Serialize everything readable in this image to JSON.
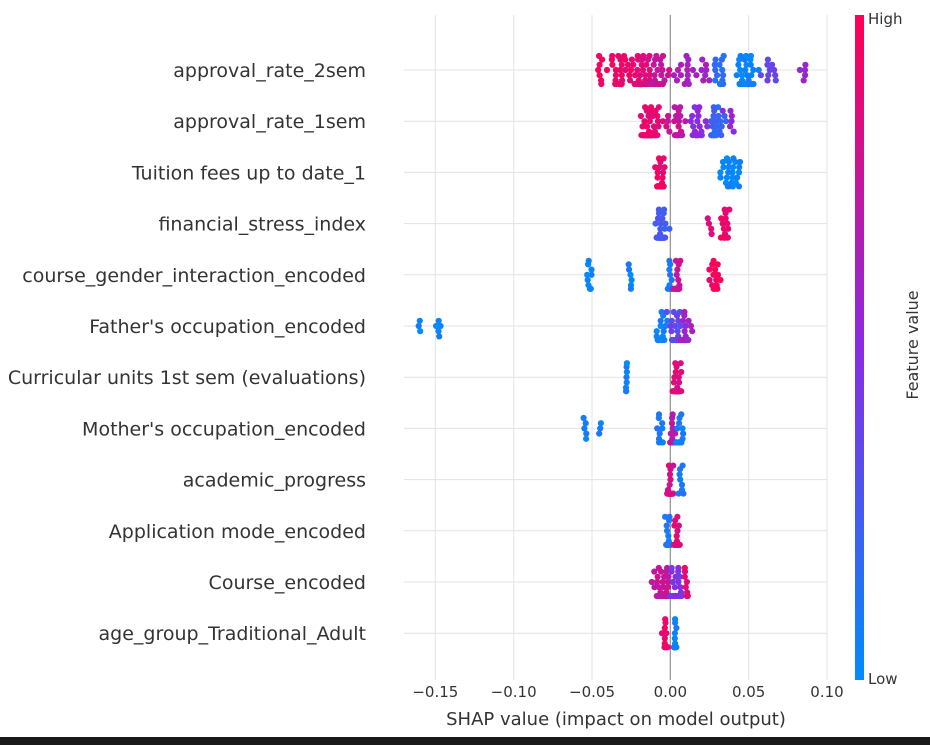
{
  "chart_data": {
    "type": "scatter",
    "xlabel": "SHAP value (impact on model output)",
    "xlim": [
      -0.17,
      0.1
    ],
    "xticks": [
      -0.15,
      -0.1,
      -0.05,
      0.0,
      0.05,
      0.1
    ],
    "xtick_labels": [
      "−0.15",
      "−0.10",
      "−0.05",
      "0.00",
      "0.05",
      "0.10"
    ],
    "grid": true,
    "colorbar": {
      "title": "Feature value",
      "high_label": "High",
      "low_label": "Low",
      "high_color": "#ff0052",
      "low_color": "#008bfb"
    },
    "features": [
      {
        "name": "approval_rate_2sem",
        "clusters": [
          {
            "x": -0.045,
            "spread": 0.006,
            "n": 8,
            "val": 0.95
          },
          {
            "x": -0.03,
            "spread": 0.008,
            "n": 30,
            "val": 0.92
          },
          {
            "x": -0.018,
            "spread": 0.006,
            "n": 50,
            "val": 0.85
          },
          {
            "x": -0.008,
            "spread": 0.005,
            "n": 30,
            "val": 0.75
          },
          {
            "x": 0.008,
            "spread": 0.006,
            "n": 14,
            "val": 0.65
          },
          {
            "x": 0.022,
            "spread": 0.004,
            "n": 8,
            "val": 0.6
          },
          {
            "x": 0.032,
            "spread": 0.004,
            "n": 18,
            "val": 0.15
          },
          {
            "x": 0.048,
            "spread": 0.006,
            "n": 45,
            "val": 0.05
          },
          {
            "x": 0.065,
            "spread": 0.006,
            "n": 10,
            "val": 0.35
          },
          {
            "x": 0.085,
            "spread": 0.005,
            "n": 5,
            "val": 0.55
          }
        ]
      },
      {
        "name": "approval_rate_1sem",
        "clusters": [
          {
            "x": -0.013,
            "spread": 0.005,
            "n": 60,
            "val": 0.9
          },
          {
            "x": 0.005,
            "spread": 0.005,
            "n": 20,
            "val": 0.75
          },
          {
            "x": 0.018,
            "spread": 0.005,
            "n": 22,
            "val": 0.5
          },
          {
            "x": 0.03,
            "spread": 0.005,
            "n": 25,
            "val": 0.2
          },
          {
            "x": 0.039,
            "spread": 0.003,
            "n": 6,
            "val": 0.55
          }
        ]
      },
      {
        "name": "Tuition fees up to date_1",
        "clusters": [
          {
            "x": -0.006,
            "spread": 0.002,
            "n": 60,
            "val": 0.93
          },
          {
            "x": 0.038,
            "spread": 0.006,
            "n": 25,
            "val": 0.03
          }
        ]
      },
      {
        "name": "financial_stress_index",
        "clusters": [
          {
            "x": -0.006,
            "spread": 0.003,
            "n": 55,
            "val": 0.25
          },
          {
            "x": 0.025,
            "spread": 0.002,
            "n": 4,
            "val": 0.85
          },
          {
            "x": 0.035,
            "spread": 0.003,
            "n": 18,
            "val": 0.92
          }
        ]
      },
      {
        "name": "course_gender_interaction_encoded",
        "clusters": [
          {
            "x": -0.052,
            "spread": 0.002,
            "n": 10,
            "val": 0.05
          },
          {
            "x": -0.026,
            "spread": 0.002,
            "n": 6,
            "val": 0.05
          },
          {
            "x": 0.0,
            "spread": 0.002,
            "n": 14,
            "val": 0.1
          },
          {
            "x": 0.004,
            "spread": 0.002,
            "n": 30,
            "val": 0.75
          },
          {
            "x": 0.028,
            "spread": 0.003,
            "n": 16,
            "val": 0.95
          }
        ]
      },
      {
        "name": "Father's occupation_encoded",
        "clusters": [
          {
            "x": -0.16,
            "spread": 0.001,
            "n": 3,
            "val": 0.05
          },
          {
            "x": -0.147,
            "spread": 0.002,
            "n": 5,
            "val": 0.05
          },
          {
            "x": -0.006,
            "spread": 0.004,
            "n": 20,
            "val": 0.05
          },
          {
            "x": 0.004,
            "spread": 0.004,
            "n": 30,
            "val": 0.35
          },
          {
            "x": 0.01,
            "spread": 0.003,
            "n": 25,
            "val": 0.6
          }
        ]
      },
      {
        "name": "Curricular units 1st sem (evaluations)",
        "clusters": [
          {
            "x": -0.028,
            "spread": 0.0007,
            "n": 8,
            "val": 0.05
          },
          {
            "x": 0.004,
            "spread": 0.002,
            "n": 50,
            "val": 0.85
          }
        ]
      },
      {
        "name": "Mother's occupation_encoded",
        "clusters": [
          {
            "x": -0.055,
            "spread": 0.002,
            "n": 5,
            "val": 0.05
          },
          {
            "x": -0.045,
            "spread": 0.001,
            "n": 3,
            "val": 0.05
          },
          {
            "x": -0.007,
            "spread": 0.002,
            "n": 10,
            "val": 0.1
          },
          {
            "x": 0.001,
            "spread": 0.002,
            "n": 30,
            "val": 0.7
          },
          {
            "x": 0.006,
            "spread": 0.002,
            "n": 15,
            "val": 0.05
          }
        ]
      },
      {
        "name": "academic_progress",
        "clusters": [
          {
            "x": 0.0,
            "spread": 0.002,
            "n": 50,
            "val": 0.8
          },
          {
            "x": 0.007,
            "spread": 0.002,
            "n": 8,
            "val": 0.1
          }
        ]
      },
      {
        "name": "Application mode_encoded",
        "clusters": [
          {
            "x": -0.001,
            "spread": 0.002,
            "n": 30,
            "val": 0.1
          },
          {
            "x": 0.004,
            "spread": 0.002,
            "n": 40,
            "val": 0.85
          }
        ]
      },
      {
        "name": "Course_encoded",
        "clusters": [
          {
            "x": -0.005,
            "spread": 0.005,
            "n": 35,
            "val": 0.75
          },
          {
            "x": 0.004,
            "spread": 0.004,
            "n": 25,
            "val": 0.45
          },
          {
            "x": 0.01,
            "spread": 0.002,
            "n": 8,
            "val": 0.9
          }
        ]
      },
      {
        "name": "age_group_Traditional_Adult",
        "clusters": [
          {
            "x": -0.003,
            "spread": 0.0015,
            "n": 15,
            "val": 0.9
          },
          {
            "x": 0.003,
            "spread": 0.0007,
            "n": 40,
            "val": 0.05
          }
        ]
      }
    ]
  }
}
